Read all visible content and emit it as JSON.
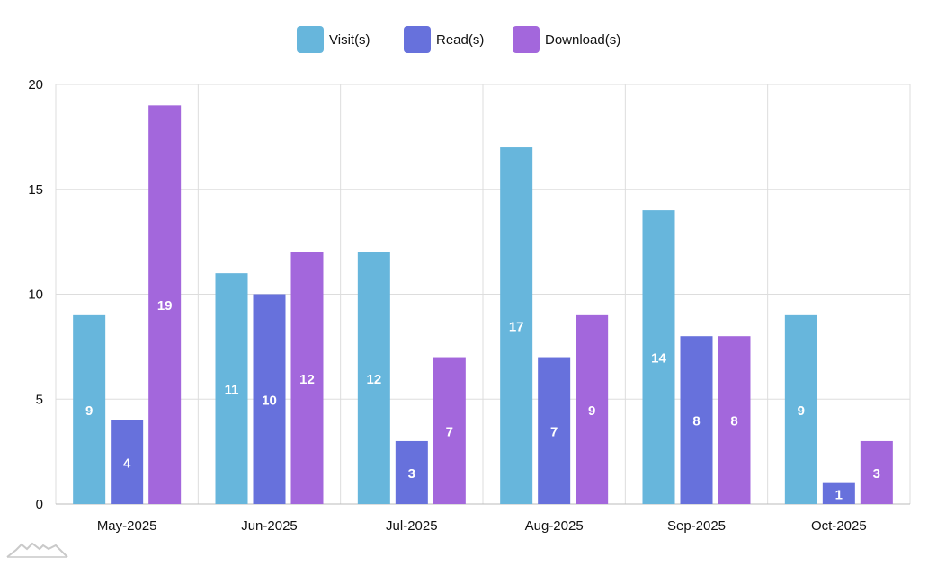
{
  "chart_data": {
    "type": "bar",
    "categories": [
      "May-2025",
      "Jun-2025",
      "Jul-2025",
      "Aug-2025",
      "Sep-2025",
      "Oct-2025"
    ],
    "series": [
      {
        "name": "Visit(s)",
        "color": "#67b6dc",
        "values": [
          9,
          11,
          12,
          17,
          14,
          9
        ]
      },
      {
        "name": "Read(s)",
        "color": "#6771dc",
        "values": [
          4,
          10,
          3,
          7,
          8,
          1
        ]
      },
      {
        "name": "Download(s)",
        "color": "#a367dc",
        "values": [
          19,
          12,
          7,
          9,
          8,
          3
        ]
      }
    ],
    "ylim": [
      0,
      20
    ],
    "yticks": [
      0,
      5,
      10,
      15,
      20
    ],
    "legend_position": "top-center",
    "grid": true,
    "colors": {
      "grid": "#dddddd",
      "axis": "#bbbbbb",
      "text": "#111111",
      "label": "#ffffff"
    }
  }
}
